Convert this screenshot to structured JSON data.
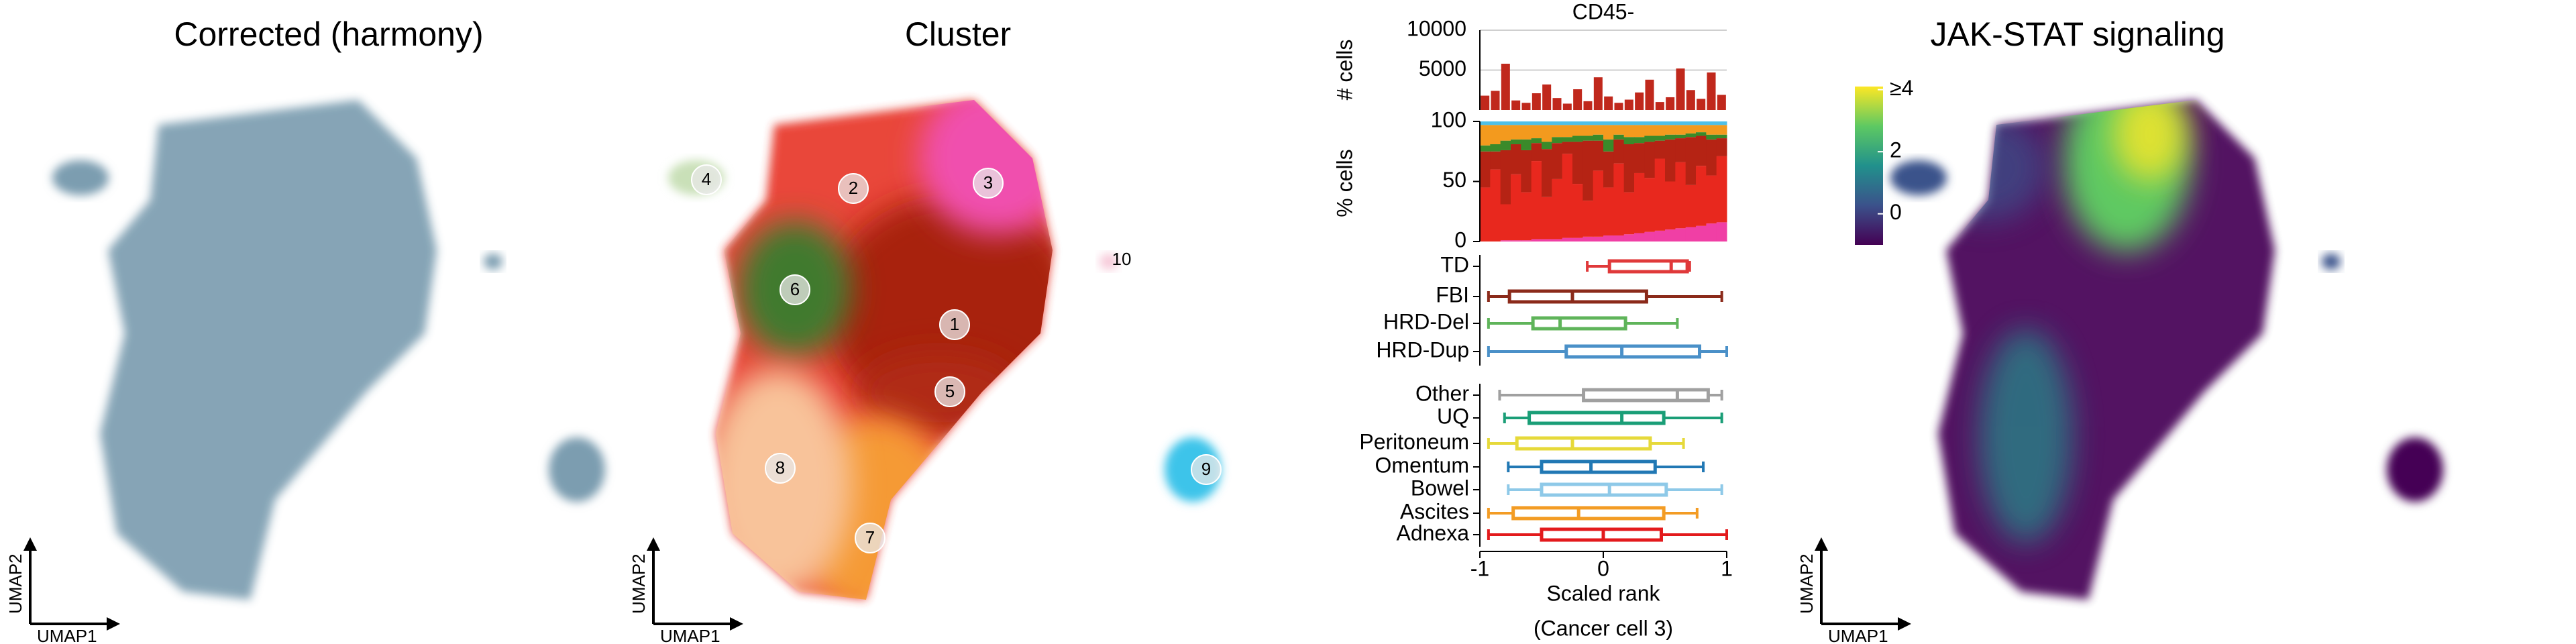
{
  "chart_data": [
    {
      "type": "umap",
      "title": "Corrected (harmony)",
      "xlabel": "UMAP1",
      "ylabel": "UMAP2",
      "color": "#7b9db0"
    },
    {
      "type": "umap",
      "title": "Cluster",
      "xlabel": "UMAP1",
      "ylabel": "UMAP2",
      "cluster_labels": [
        "1",
        "2",
        "3",
        "4",
        "5",
        "6",
        "7",
        "8",
        "9",
        "10"
      ],
      "colors": [
        "#a8230f",
        "#e8372a",
        "#f04fae",
        "#c9e0b8",
        "#b02a14",
        "#3f7a2e",
        "#f59a35",
        "#f8c39a",
        "#3cc4ea",
        "#f7c8d8"
      ]
    },
    {
      "type": "bar",
      "title": "CD45-",
      "ylabel": "# cells",
      "color": "#c0281c",
      "values": [
        1800,
        2400,
        5800,
        1200,
        900,
        2100,
        3200,
        1500,
        800,
        2600,
        1100,
        4100,
        1700,
        900,
        1300,
        2200,
        3800,
        1000,
        1600,
        5200,
        2500,
        1400,
        4700,
        1900
      ],
      "ylim": [
        0,
        10000
      ],
      "yticks": [
        5000,
        10000
      ],
      "grid": true
    },
    {
      "type": "stacked_bar",
      "ylabel": "% cells",
      "ylim": [
        0,
        100
      ],
      "yticks": [
        0,
        50,
        100
      ],
      "series": [
        {
          "color": "#f03fa5",
          "values": [
            0,
            0,
            1,
            1,
            1,
            2,
            2,
            2,
            3,
            3,
            4,
            4,
            5,
            5,
            6,
            7,
            8,
            9,
            10,
            11,
            12,
            13,
            15,
            16
          ]
        },
        {
          "color": "#e8281e",
          "values": [
            45,
            60,
            30,
            55,
            40,
            65,
            35,
            50,
            70,
            45,
            30,
            55,
            40,
            60,
            35,
            50,
            45,
            60,
            40,
            55,
            35,
            50,
            40,
            55
          ]
        },
        {
          "color": "#b52314",
          "values": [
            30,
            15,
            45,
            25,
            35,
            15,
            40,
            30,
            10,
            35,
            50,
            25,
            30,
            20,
            40,
            25,
            30,
            15,
            35,
            20,
            40,
            25,
            30,
            15
          ]
        },
        {
          "color": "#3a8a2a",
          "values": [
            5,
            6,
            8,
            4,
            9,
            4,
            6,
            5,
            4,
            5,
            4,
            5,
            10,
            4,
            6,
            5,
            5,
            4,
            4,
            3,
            3,
            3,
            4,
            3
          ]
        },
        {
          "color": "#f39a1e",
          "values": [
            17,
            16,
            13,
            12,
            12,
            11,
            14,
            10,
            10,
            9,
            9,
            8,
            12,
            8,
            10,
            10,
            9,
            9,
            8,
            8,
            7,
            6,
            8,
            8
          ]
        },
        {
          "color": "#4fc0e8",
          "values": [
            3,
            3,
            3,
            3,
            3,
            3,
            3,
            3,
            3,
            3,
            3,
            3,
            3,
            3,
            3,
            3,
            3,
            3,
            3,
            3,
            3,
            3,
            3,
            3
          ]
        }
      ]
    },
    {
      "type": "box",
      "xlim": [
        -1,
        1
      ],
      "boxes": [
        {
          "name": "TD",
          "color": "#e0393a",
          "min": -0.13,
          "q1": 0.05,
          "median": 0.55,
          "q3": 0.68,
          "max": 0.7
        },
        {
          "name": "FBI",
          "color": "#8b2a1a",
          "min": -0.93,
          "q1": -0.76,
          "median": -0.25,
          "q3": 0.35,
          "max": 0.96
        },
        {
          "name": "HRD-Del",
          "color": "#5fb45a",
          "min": -0.93,
          "q1": -0.57,
          "median": -0.35,
          "q3": 0.18,
          "max": 0.6
        },
        {
          "name": "HRD-Dup",
          "color": "#4a90c8",
          "min": -0.93,
          "q1": -0.3,
          "median": 0.15,
          "q3": 0.78,
          "max": 1
        }
      ]
    },
    {
      "type": "box",
      "xlim": [
        -1,
        1
      ],
      "xticks": [
        -1,
        0,
        1
      ],
      "xlabel": [
        "Scaled rank",
        "(Cancer cell 3)"
      ],
      "boxes": [
        {
          "name": "Other",
          "color": "#a0a0a0",
          "min": -0.84,
          "q1": -0.16,
          "median": 0.6,
          "q3": 0.85,
          "max": 0.96
        },
        {
          "name": "UQ",
          "color": "#1a9e77",
          "min": -0.8,
          "q1": -0.6,
          "median": 0.15,
          "q3": 0.49,
          "max": 0.96
        },
        {
          "name": "Peritoneum",
          "color": "#e6d93a",
          "min": -0.93,
          "q1": -0.7,
          "median": -0.25,
          "q3": 0.38,
          "max": 0.65
        },
        {
          "name": "Omentum",
          "color": "#2178b4",
          "min": -0.77,
          "q1": -0.5,
          "median": -0.1,
          "q3": 0.42,
          "max": 0.81
        },
        {
          "name": "Bowel",
          "color": "#8ec9e8",
          "min": -0.77,
          "q1": -0.5,
          "median": 0.05,
          "q3": 0.51,
          "max": 0.96
        },
        {
          "name": "Ascites",
          "color": "#f39c24",
          "min": -0.93,
          "q1": -0.73,
          "median": -0.2,
          "q3": 0.49,
          "max": 0.76
        },
        {
          "name": "Adnexa",
          "color": "#e31a1c",
          "min": -0.93,
          "q1": -0.5,
          "median": 0,
          "q3": 0.47,
          "max": 1
        }
      ]
    },
    {
      "type": "umap",
      "title": "JAK-STAT signaling",
      "xlabel": "UMAP1",
      "ylabel": "UMAP2",
      "colors": [
        "#440154",
        "#3b528b",
        "#21918c",
        "#5ec962",
        "#fde725"
      ],
      "clim": [
        -1,
        4.1
      ],
      "cticks": [
        0,
        2,
        {
          "value": 4,
          "label": "≥4"
        }
      ]
    }
  ]
}
